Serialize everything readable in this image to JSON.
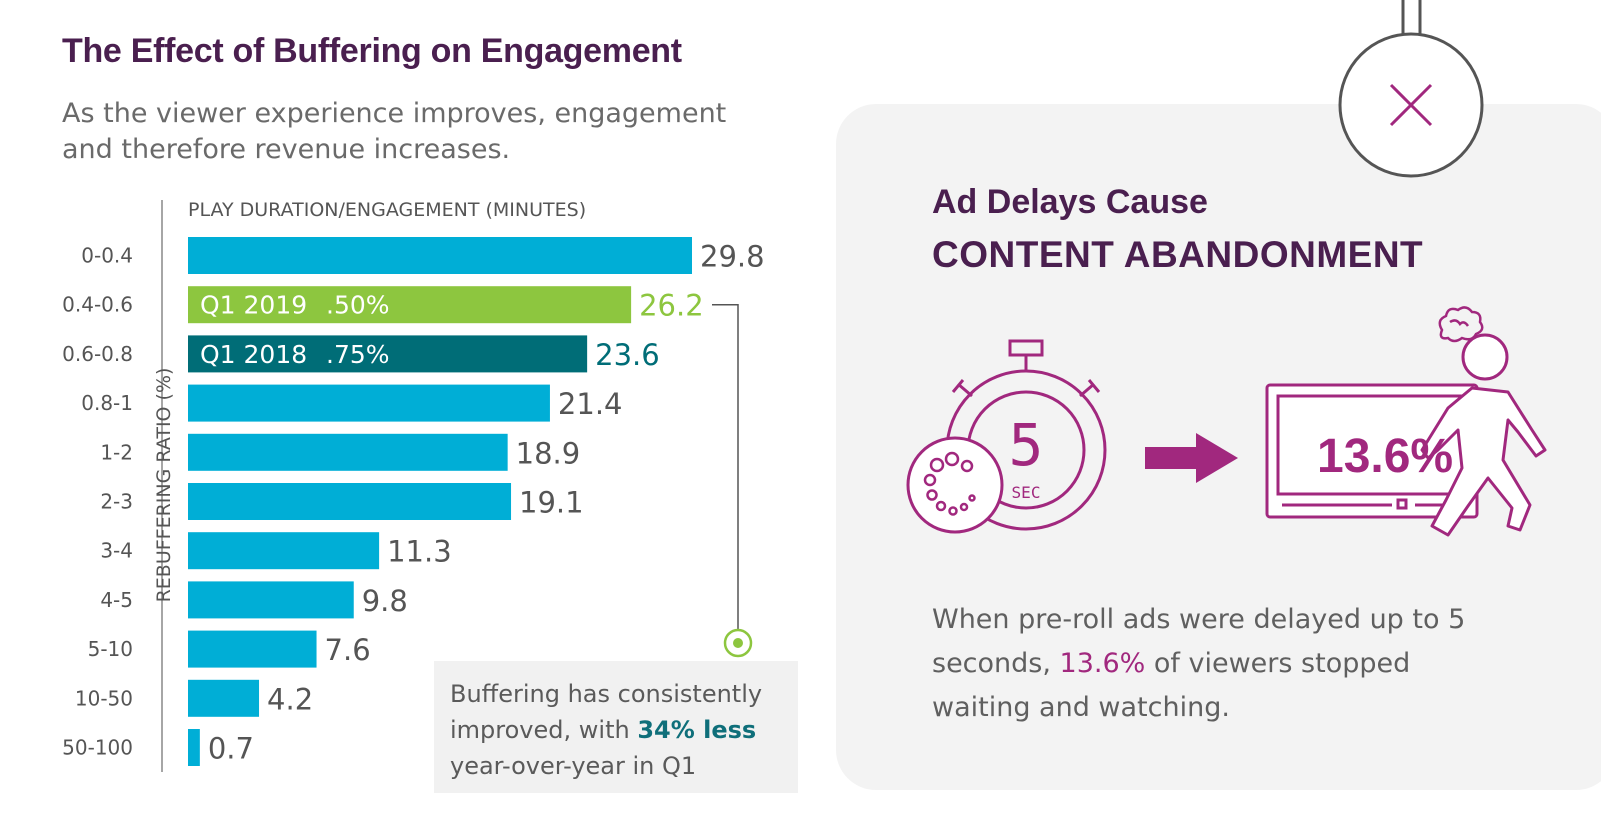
{
  "left": {
    "title": "The Effect of Buffering on Engagement",
    "subtitle": "As the viewer experience improves, engagement and therefore revenue increases."
  },
  "chart_data": {
    "type": "bar",
    "orientation": "horizontal",
    "title": "",
    "xlabel": "PLAY DURATION/ENGAGEMENT (MINUTES)",
    "ylabel": "REBUFFERING RATIO (%)",
    "categories": [
      "0-0.4",
      "0.4-0.6",
      "0.6-0.8",
      "0.8-1",
      "1-2",
      "2-3",
      "3-4",
      "4-5",
      "5-10",
      "10-50",
      "50-100"
    ],
    "values": [
      29.8,
      26.2,
      23.6,
      21.4,
      18.9,
      19.1,
      11.3,
      9.8,
      7.6,
      4.2,
      0.7
    ],
    "value_labels": [
      "29.8",
      "26.2",
      "23.6",
      "21.4",
      "18.9",
      "19.1",
      "11.3",
      "9.8",
      "7.6",
      "4.2",
      "0.7"
    ],
    "xlim": [
      0,
      30
    ],
    "grid": false,
    "highlights": [
      {
        "category": "0.4-0.6",
        "label_period": "Q1 2019",
        "label_ratio": ".50%",
        "color": "#8dc63f"
      },
      {
        "category": "0.6-0.8",
        "label_period": "Q1 2018",
        "label_ratio": ".75%",
        "color": "#006d77"
      }
    ],
    "bar_color": "#00aed6"
  },
  "note": {
    "text_before": "Buffering has consistently improved, with ",
    "strong": "34% less",
    "text_after": " year-over-year in Q1"
  },
  "right": {
    "heading1": "Ad Delays Cause",
    "heading2": "CONTENT ABANDONMENT",
    "timer_number": "5",
    "timer_unit": "SEC",
    "big_percent": "13.6%",
    "desc_before": "When pre-roll ads were delayed up to 5 seconds, ",
    "desc_highlight": "13.6%",
    "desc_after": " of viewers stopped waiting and watching."
  },
  "colors": {
    "title": "#4a1f4f",
    "magenta": "#a1287e",
    "bar": "#00aed6",
    "q1_2019": "#8dc63f",
    "q1_2018": "#006d77",
    "panel": "#f3f3f3"
  },
  "icons": [
    "close-x-icon",
    "stopwatch-icon",
    "spinner-icon",
    "arrow-right-icon",
    "screen-icon",
    "walking-person-icon",
    "frustration-cloud-icon"
  ]
}
